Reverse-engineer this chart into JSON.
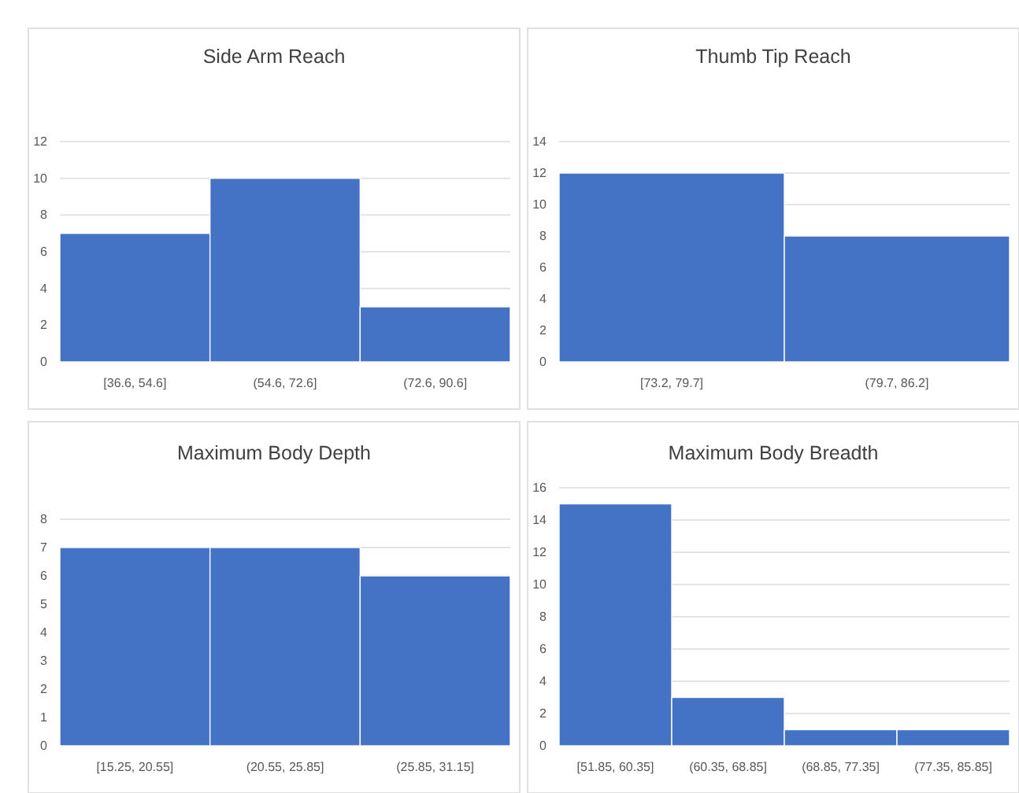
{
  "chart_data": [
    {
      "type": "bar",
      "title": "Side Arm Reach",
      "categories": [
        "[36.6, 54.6]",
        "(54.6, 72.6]",
        "(72.6, 90.6]"
      ],
      "values": [
        7,
        10,
        3
      ],
      "color": "#4472c4",
      "ylim": [
        0,
        12
      ],
      "yticks": [
        0,
        2,
        4,
        6,
        8,
        10,
        12
      ],
      "grid": "y"
    },
    {
      "type": "bar",
      "title": "Thumb Tip Reach",
      "categories": [
        "[73.2, 79.7]",
        "(79.7, 86.2]"
      ],
      "values": [
        12,
        8
      ],
      "color": "#4472c4",
      "ylim": [
        0,
        14
      ],
      "yticks": [
        0,
        2,
        4,
        6,
        8,
        10,
        12,
        14
      ],
      "grid": "y"
    },
    {
      "type": "bar",
      "title": "Maximum Body Depth",
      "categories": [
        "[15.25, 20.55]",
        "(20.55, 25.85]",
        "(25.85, 31.15]"
      ],
      "values": [
        7,
        7,
        6
      ],
      "color": "#4472c4",
      "ylim": [
        0,
        8
      ],
      "yticks": [
        0,
        1,
        2,
        3,
        4,
        5,
        6,
        7,
        8
      ],
      "grid": "y"
    },
    {
      "type": "bar",
      "title": "Maximum Body Breadth",
      "categories": [
        "[51.85, 60.35]",
        "(60.35, 68.85]",
        "(68.85, 77.35]",
        "(77.35, 85.85]"
      ],
      "values": [
        15,
        3,
        1,
        1
      ],
      "color": "#4472c4",
      "ylim": [
        0,
        16
      ],
      "yticks": [
        0,
        2,
        4,
        6,
        8,
        10,
        12,
        14,
        16
      ],
      "grid": "y"
    }
  ]
}
